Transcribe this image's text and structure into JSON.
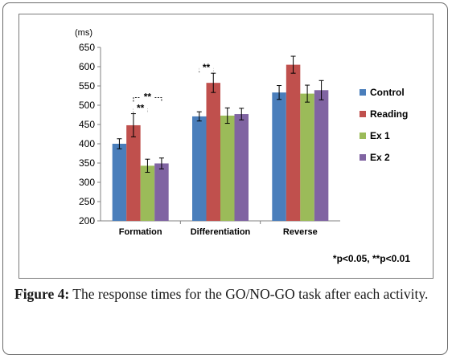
{
  "chart_data": {
    "type": "bar",
    "unit_label": "(ms)",
    "categories": [
      "Formation",
      "Differentiation",
      "Reverse"
    ],
    "ylim": [
      200,
      650
    ],
    "yticks": [
      200,
      250,
      300,
      350,
      400,
      450,
      500,
      550,
      600,
      650
    ],
    "grid": false,
    "legend_position": "right",
    "series": [
      {
        "name": "Control",
        "color": "#4a7ebb",
        "values": [
          400,
          471,
          533
        ],
        "errors": [
          13,
          12,
          18
        ]
      },
      {
        "name": "Reading",
        "color": "#c0504d",
        "values": [
          448,
          558,
          605
        ],
        "errors": [
          30,
          25,
          22
        ]
      },
      {
        "name": "Ex 1",
        "color": "#9bbb59",
        "values": [
          343,
          473,
          530
        ],
        "errors": [
          17,
          20,
          22
        ]
      },
      {
        "name": "Ex 2",
        "color": "#8064a2",
        "values": [
          349,
          477,
          539
        ],
        "errors": [
          14,
          15,
          25
        ]
      }
    ],
    "significance": [
      {
        "category": 0,
        "from": 1,
        "to": 2,
        "label": "**"
      },
      {
        "category": 0,
        "from": 1,
        "to": 3,
        "label": "**"
      },
      {
        "category": 1,
        "from": 0,
        "to": 1,
        "label": "**"
      }
    ],
    "note": "*p<0.05, **p<0.01"
  },
  "caption": {
    "label": "Figure 4:",
    "text": " The response times for the GO/NO-GO task after each activity."
  }
}
